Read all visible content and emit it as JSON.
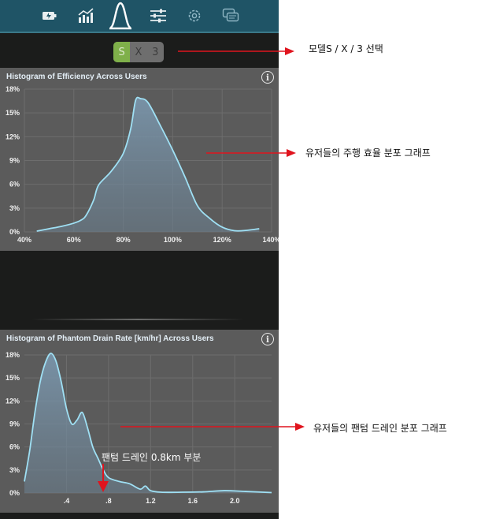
{
  "nav": {
    "tabs": [
      {
        "name": "battery-icon"
      },
      {
        "name": "trend-chart-icon"
      },
      {
        "name": "histogram-icon",
        "active": true
      },
      {
        "name": "sliders-icon"
      },
      {
        "name": "gear-icon"
      },
      {
        "name": "chat-icon"
      }
    ]
  },
  "model_selector": {
    "options": [
      "S",
      "X",
      "3"
    ],
    "selected": "S"
  },
  "charts": [
    {
      "title": "Histogram of Efficiency Across Users",
      "chart_data": {
        "type": "area",
        "title": "Histogram of Efficiency Across Users",
        "x_ticks": [
          "40%",
          "60%",
          "80%",
          "100%",
          "120%",
          "140%"
        ],
        "y_ticks": [
          "0%",
          "3%",
          "6%",
          "9%",
          "12%",
          "15%",
          "18%"
        ],
        "xlim": [
          40,
          140
        ],
        "ylim": [
          0,
          18
        ],
        "x": [
          45,
          50,
          55,
          60,
          63,
          65,
          68,
          70,
          75,
          80,
          83,
          85,
          87,
          90,
          95,
          100,
          105,
          110,
          115,
          120,
          125,
          130,
          135
        ],
        "y": [
          0.1,
          0.4,
          0.7,
          1.1,
          1.5,
          2.1,
          4.0,
          5.9,
          7.6,
          9.9,
          13.0,
          16.6,
          16.8,
          16.3,
          13.4,
          10.3,
          6.9,
          3.3,
          1.7,
          0.6,
          0.15,
          0.2,
          0.4
        ]
      }
    },
    {
      "title": "Histogram of Phantom Drain Rate [km/hr] Across Users",
      "chart_data": {
        "type": "area",
        "title": "Histogram of Phantom Drain Rate [km/hr] Across Users",
        "x_ticks": [
          ".4",
          ".8",
          "1.2",
          "1.6",
          "2.0"
        ],
        "y_ticks": [
          "0%",
          "3%",
          "6%",
          "9%",
          "12%",
          "15%",
          "18%"
        ],
        "xlim": [
          0.0,
          2.35
        ],
        "ylim": [
          0,
          18
        ],
        "x": [
          0.0,
          0.05,
          0.1,
          0.15,
          0.2,
          0.25,
          0.3,
          0.35,
          0.4,
          0.45,
          0.5,
          0.55,
          0.6,
          0.65,
          0.7,
          0.75,
          0.8,
          0.9,
          1.0,
          1.1,
          1.15,
          1.2,
          1.3,
          1.5,
          1.7,
          1.9,
          2.1,
          2.35
        ],
        "y": [
          1.5,
          5.5,
          10.5,
          14.5,
          17.0,
          18.2,
          17.2,
          14.5,
          11.0,
          9.0,
          9.5,
          10.5,
          8.5,
          6.0,
          4.5,
          3.0,
          2.0,
          1.5,
          1.2,
          0.5,
          0.9,
          0.3,
          0.1,
          0.1,
          0.15,
          0.3,
          0.2,
          0.05
        ]
      }
    }
  ],
  "annotations": {
    "model_select": "모델S / X / 3 선택",
    "efficiency": "유저들의 주행 효율 분포 그래프",
    "phantom": "유저들의 팬텀 드레인 분포 그래프",
    "phantom_point": "팬텀 드레인 0.8km 부분"
  },
  "colors": {
    "accent_line": "#9fe0f4",
    "annotation_arrow": "#e0141e",
    "selected": "#7fb04a",
    "topbar": "#1f5466"
  }
}
